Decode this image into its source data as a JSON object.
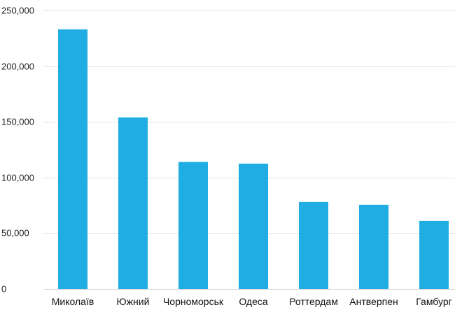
{
  "chart_data": {
    "type": "bar",
    "categories": [
      "Миколаїв",
      "Южний",
      "Чорноморськ",
      "Одеса",
      "Роттердам",
      "Антверпен",
      "Гамбург"
    ],
    "values": [
      233000,
      154000,
      114000,
      112500,
      78000,
      75500,
      61000
    ],
    "title": "",
    "xlabel": "",
    "ylabel": "",
    "ylim": [
      0,
      250000
    ],
    "yticks": [
      0,
      50000,
      100000,
      150000,
      200000,
      250000
    ],
    "ytick_labels": [
      "0",
      "50,000",
      "100,000",
      "150,000",
      "200,000",
      "250,000"
    ],
    "grid": true,
    "legend": "none",
    "bar_color": "#1fade3"
  }
}
